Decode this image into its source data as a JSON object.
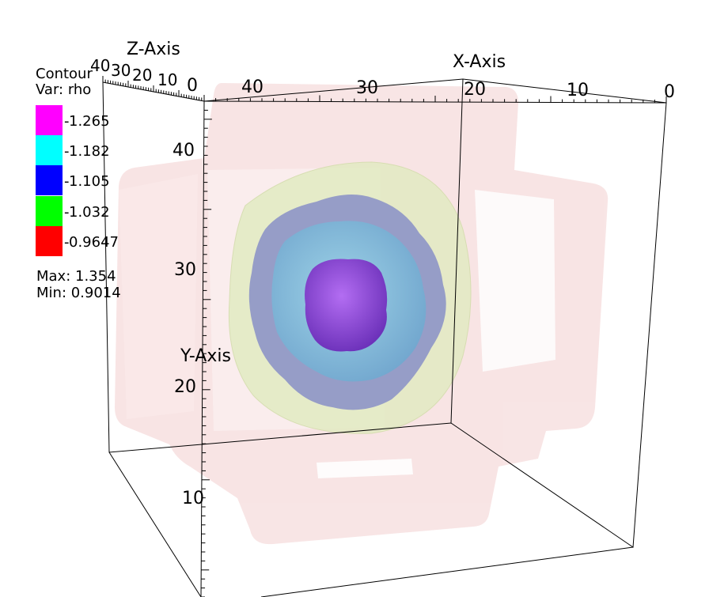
{
  "legend": {
    "title_line1": "Contour",
    "title_line2": "Var: rho",
    "entries": [
      {
        "value": "1.265",
        "color": "#ff00ff"
      },
      {
        "value": "1.182",
        "color": "#00ffff"
      },
      {
        "value": "1.105",
        "color": "#0000ff"
      },
      {
        "value": "1.032",
        "color": "#00ff00"
      },
      {
        "value": "0.9647",
        "color": "#ff0000"
      }
    ],
    "max_label": "Max:  1.354",
    "min_label": "Min:  0.9014"
  },
  "axes": {
    "x": {
      "title": "X-Axis",
      "ticks": [
        "40",
        "30",
        "20",
        "10",
        "0"
      ]
    },
    "y": {
      "title": "Y-Axis",
      "ticks": [
        "40",
        "30",
        "20",
        "10"
      ]
    },
    "z": {
      "title": "Z-Axis",
      "ticks": [
        "40",
        "30",
        "20",
        "10",
        "0"
      ]
    }
  },
  "colors": {
    "outer_shell": "#f7dcdc",
    "shell_green": "#e4ecc8",
    "shell_blue": "#8f98c8",
    "shell_cyan": "#8ec8e0",
    "core_magenta": "#9950e6"
  }
}
